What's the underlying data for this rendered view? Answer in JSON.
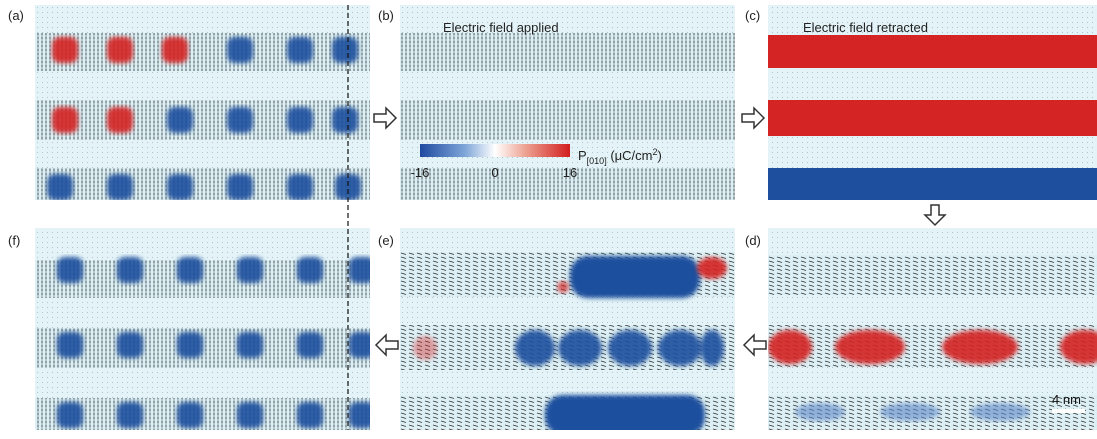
{
  "panels": [
    {
      "label": "(a)"
    },
    {
      "label": "(b)",
      "caption": "Electric field applied"
    },
    {
      "label": "(c)",
      "caption": "Electric field retracted"
    },
    {
      "label": "(d)"
    },
    {
      "label": "(e)"
    },
    {
      "label": "(f)"
    }
  ],
  "colorbar": {
    "symbol": "P",
    "subscript": "[010]",
    "unit": " (μC/cm",
    "unit_power": "2",
    "unit_close": ")",
    "lim": [
      -16,
      16
    ],
    "ticks": [
      -16,
      0,
      16
    ]
  },
  "scale_bar": "4 nm"
}
